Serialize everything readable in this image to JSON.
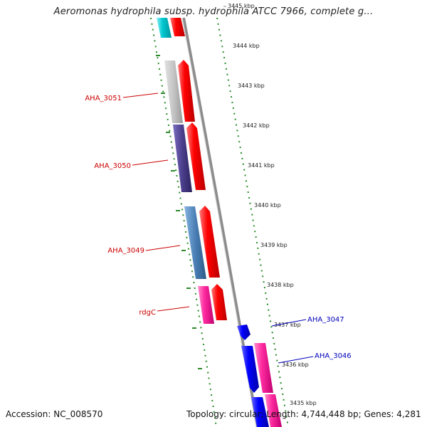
{
  "title": "Aeromonas hydrophila subsp. hydrophila ATCC 7966, complete g...",
  "footer": {
    "accession": "Accession: NC_008570",
    "topology": "Topology: circular; Length: 4,744,448 bp; Genes: 4,281"
  },
  "colors": {
    "backbone": "#8c8c8c",
    "tick": "#2a8a2a",
    "gene_red": "#ff0000",
    "gene_blue": "#0000ff",
    "gene_pink": "#ff2aa0",
    "gene_cyan": "#00c8d2",
    "gene_gray": "#c4c4c4",
    "gene_purple": "#4a3d8a",
    "gene_steel": "#4a7fb5",
    "label_left": "#cc0000",
    "label_right": "#0000bb"
  },
  "kbp_labels": [
    "3445 kbp",
    "3444 kbp",
    "3443 kbp",
    "3442 kbp",
    "3441 kbp",
    "3440 kbp",
    "3439 kbp",
    "3438 kbp",
    "3437 kbp",
    "3436 kbp",
    "3435 kbp"
  ],
  "gene_labels_left": [
    "AHA_3051",
    "AHA_3050",
    "AHA_3049",
    "rdgC"
  ],
  "gene_labels_right": [
    "AHA_3047",
    "AHA_3046"
  ]
}
